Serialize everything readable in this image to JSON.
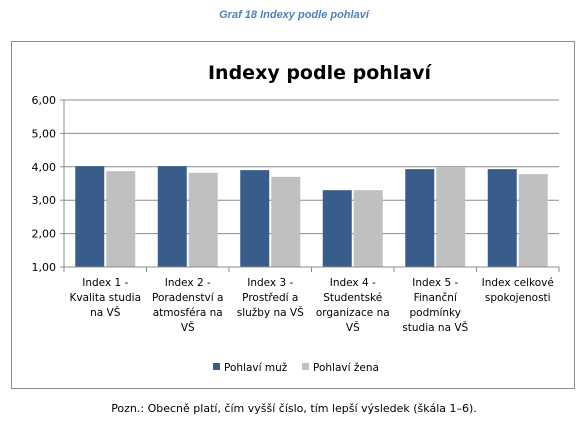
{
  "caption": "Graf 18 Indexy podle pohlaví",
  "note": "Pozn.: Obecně platí, čím vyšší číslo, tím lepší výsledek (škála 1–6).",
  "chart_data": {
    "type": "bar",
    "title": "Indexy podle pohlaví",
    "xlabel": "",
    "ylabel": "",
    "ylim": [
      1,
      6
    ],
    "yticks": [
      "1,00",
      "2,00",
      "3,00",
      "4,00",
      "5,00",
      "6,00"
    ],
    "grid": true,
    "legend_position": "bottom",
    "categories": [
      [
        "Index 1 -",
        "Kvalita studia",
        "na VŠ"
      ],
      [
        "Index 2 -",
        "Poradenství a",
        "atmosféra na",
        "VŠ"
      ],
      [
        "Index 3 -",
        "Prostředí a",
        "služby na VŠ"
      ],
      [
        "Index 4 -",
        "Studentské",
        "organizace na",
        "VŠ"
      ],
      [
        "Index 5 -",
        "Finanční",
        "podmínky",
        "studia na VŠ"
      ],
      [
        "Index celkové",
        "spokojenosti"
      ]
    ],
    "series": [
      {
        "name": "Pohlaví muž",
        "color": "#385d8a",
        "values": [
          4.02,
          4.02,
          3.9,
          3.3,
          3.93,
          3.93
        ]
      },
      {
        "name": "Pohlaví žena",
        "color": "#c0c0c0",
        "values": [
          3.87,
          3.82,
          3.7,
          3.3,
          3.98,
          3.78
        ]
      }
    ]
  }
}
